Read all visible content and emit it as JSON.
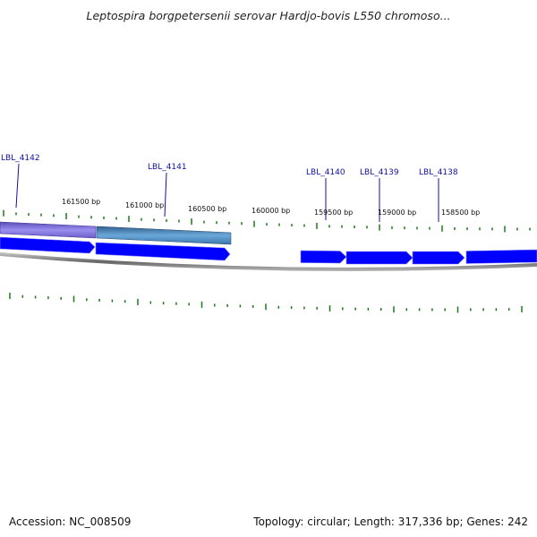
{
  "header": {
    "title": "Leptospira borgpetersenii serovar Hardjo-bovis L550 chromoso..."
  },
  "footer": {
    "accession": "Accession: NC_008509",
    "summary": "Topology: circular; Length: 317,336 bp; Genes: 242"
  },
  "map": {
    "gene_labels": [
      "LBL_4142",
      "LBL_4141",
      "LBL_4140",
      "LBL_4139",
      "LBL_4138"
    ],
    "bp_labels": [
      "161500 bp",
      "161000 bp",
      "160500 bp",
      "160000 bp",
      "159500 bp",
      "159000 bp",
      "158500 bp"
    ],
    "colors": {
      "feature_arrow": "#0000ff",
      "highlight_purple": "#7e6fd6",
      "highlight_teal": "#4a8ac0",
      "tick": "#1a7a1a",
      "backbone": "#888888",
      "gene_label": "#1010a0"
    }
  }
}
